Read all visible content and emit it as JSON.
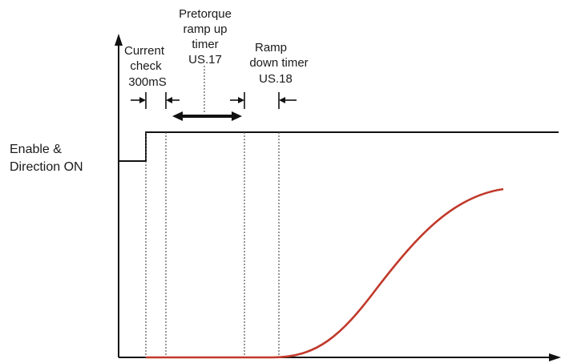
{
  "labels": {
    "enable_line1": "Enable &",
    "enable_line2": "Direction ON",
    "current_line1": "Current",
    "current_line2": "check",
    "current_line3": "300mS",
    "pretorque_line1": "Pretorque",
    "pretorque_line2": "ramp up",
    "pretorque_line3": "timer",
    "pretorque_line4": "US.17",
    "rampdown_line1": "Ramp",
    "rampdown_line2": "down timer",
    "rampdown_line3": "US.18"
  },
  "colors": {
    "axis": "#111111",
    "curve": "#c0392b",
    "guide": "#555555"
  }
}
